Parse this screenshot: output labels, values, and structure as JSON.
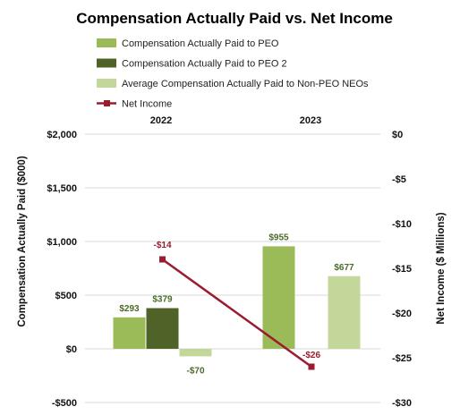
{
  "chart_data": {
    "type": "bar",
    "title": "Compensation Actually Paid vs. Net Income",
    "categories": [
      "2022",
      "2023"
    ],
    "ylabel": "Compensation Actually Paid ($000)",
    "y2label": "Net Income ($ Millions)",
    "ylim": [
      -500,
      2000
    ],
    "y2lim": [
      -30,
      0
    ],
    "yticks": [
      2000,
      1500,
      1000,
      500,
      0,
      -500
    ],
    "yticklabels": [
      "$2,000",
      "$1,500",
      "$1,000",
      "$500",
      "$0",
      "-$500"
    ],
    "y2ticks": [
      0,
      -5,
      -10,
      -15,
      -20,
      -25,
      -30
    ],
    "y2ticklabels": [
      "$0",
      "-$5",
      "-$10",
      "-$15",
      "-$20",
      "-$25",
      "-$30"
    ],
    "grid": true,
    "legend_position": "top",
    "series": [
      {
        "name": "Compensation Actually Paid to PEO",
        "color": "#9bbb59",
        "values": [
          293,
          955
        ],
        "labels": [
          "$293",
          "$955"
        ]
      },
      {
        "name": "Compensation Actually Paid to PEO 2",
        "color": "#4f6228",
        "values": [
          379,
          null
        ],
        "labels": [
          "$379",
          ""
        ]
      },
      {
        "name": "Average Compensation Actually Paid to Non-PEO NEOs",
        "color": "#c4d79b",
        "values": [
          -70,
          677
        ],
        "labels": [
          "-$70",
          "$677"
        ]
      }
    ],
    "line_series": {
      "name": "Net Income",
      "color": "#9b1b30",
      "axis": "right",
      "values": [
        -14,
        -26
      ],
      "labels": [
        "-$14",
        "-$26"
      ]
    }
  }
}
